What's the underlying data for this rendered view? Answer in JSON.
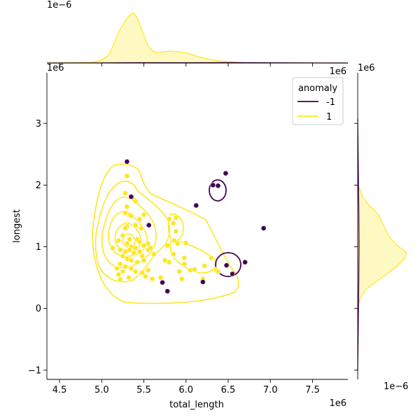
{
  "chart_data": {
    "type": "scatter",
    "subtype": "jointplot-kde",
    "xlabel": "total_length",
    "ylabel": "longest",
    "x_offset_text": "1e6",
    "y_offset_text": "1e6",
    "top_marginal_offset_text": "1e−6",
    "right_marginal_offset_text": "1e−6",
    "right_marginal_y_offset_text": "1e6",
    "xlim": [
      4.35,
      7.92
    ],
    "ylim": [
      -1.15,
      3.82
    ],
    "xticks": [
      "4.5",
      "5.0",
      "5.5",
      "6.0",
      "6.5",
      "7.0",
      "7.5"
    ],
    "xtick_values": [
      4.5,
      5.0,
      5.5,
      6.0,
      6.5,
      7.0,
      7.5
    ],
    "yticks": [
      "−1",
      "0",
      "1",
      "2",
      "3"
    ],
    "ytick_values": [
      -1,
      0,
      1,
      2,
      3
    ],
    "legend": {
      "title": "anomaly",
      "placement": "top-right",
      "entries": [
        {
          "label": "-1",
          "color": "#440154"
        },
        {
          "label": "1",
          "color": "#fde725"
        }
      ]
    },
    "series": [
      {
        "name": "1",
        "color": "#fde725",
        "points": [
          [
            5.3,
            2.15
          ],
          [
            5.28,
            1.87
          ],
          [
            5.35,
            1.8
          ],
          [
            5.38,
            1.77
          ],
          [
            5.4,
            1.74
          ],
          [
            5.3,
            1.65
          ],
          [
            5.28,
            1.55
          ],
          [
            5.33,
            1.52
          ],
          [
            5.35,
            1.5
          ],
          [
            5.5,
            1.52
          ],
          [
            5.45,
            1.45
          ],
          [
            5.4,
            1.35
          ],
          [
            5.3,
            1.33
          ],
          [
            5.28,
            1.3
          ],
          [
            5.47,
            1.3
          ],
          [
            5.25,
            1.18
          ],
          [
            5.33,
            1.12
          ],
          [
            5.42,
            1.12
          ],
          [
            5.2,
            1.1
          ],
          [
            5.3,
            1.05
          ],
          [
            5.45,
            1.08
          ],
          [
            5.35,
            1.0
          ],
          [
            5.4,
            0.98
          ],
          [
            5.5,
            1.02
          ],
          [
            5.55,
            1.05
          ],
          [
            5.22,
            0.95
          ],
          [
            5.28,
            0.92
          ],
          [
            5.33,
            0.95
          ],
          [
            5.38,
            0.9
          ],
          [
            5.45,
            0.92
          ],
          [
            5.48,
            0.85
          ],
          [
            5.55,
            0.95
          ],
          [
            5.58,
            0.98
          ],
          [
            5.62,
            0.88
          ],
          [
            5.25,
            0.85
          ],
          [
            5.3,
            0.8
          ],
          [
            5.35,
            0.78
          ],
          [
            5.42,
            0.75
          ],
          [
            5.5,
            0.78
          ],
          [
            5.22,
            0.72
          ],
          [
            5.28,
            0.68
          ],
          [
            5.35,
            0.65
          ],
          [
            5.4,
            0.6
          ],
          [
            5.48,
            0.58
          ],
          [
            5.55,
            0.62
          ],
          [
            5.25,
            0.6
          ],
          [
            5.2,
            0.55
          ],
          [
            5.32,
            0.5
          ],
          [
            5.52,
            0.52
          ],
          [
            5.6,
            0.48
          ],
          [
            5.7,
            0.5
          ],
          [
            5.75,
            0.78
          ],
          [
            5.8,
            0.75
          ],
          [
            5.78,
            1.02
          ],
          [
            5.8,
            1.45
          ],
          [
            5.88,
            1.47
          ],
          [
            5.85,
            1.38
          ],
          [
            5.88,
            1.25
          ],
          [
            5.86,
            1.1
          ],
          [
            5.9,
            1.05
          ],
          [
            6.0,
            1.06
          ],
          [
            5.85,
            0.88
          ],
          [
            5.98,
            0.82
          ],
          [
            5.98,
            0.72
          ],
          [
            6.05,
            0.62
          ],
          [
            6.1,
            0.63
          ],
          [
            6.22,
            0.69
          ],
          [
            6.3,
            0.82
          ],
          [
            6.35,
            0.63
          ],
          [
            6.38,
            0.6
          ],
          [
            6.2,
            0.48
          ],
          [
            5.92,
            0.6
          ],
          [
            5.95,
            0.48
          ],
          [
            5.13,
            0.98
          ],
          [
            5.18,
            0.65
          ],
          [
            5.22,
            0.47
          ]
        ]
      },
      {
        "name": "-1",
        "color": "#440154",
        "points": [
          [
            5.3,
            2.38
          ],
          [
            6.47,
            2.19
          ],
          [
            6.32,
            2.0
          ],
          [
            6.38,
            1.99
          ],
          [
            5.35,
            1.81
          ],
          [
            6.12,
            1.67
          ],
          [
            5.56,
            1.35
          ],
          [
            6.92,
            1.3
          ],
          [
            6.7,
            0.75
          ],
          [
            6.48,
            0.7
          ],
          [
            6.55,
            0.56
          ],
          [
            6.2,
            0.43
          ],
          [
            5.72,
            0.42
          ],
          [
            5.78,
            0.28
          ]
        ]
      }
    ],
    "kde_contours": [
      {
        "series": "1",
        "color": "#fde725"
      },
      {
        "series": "-1",
        "color": "#440154"
      }
    ]
  }
}
